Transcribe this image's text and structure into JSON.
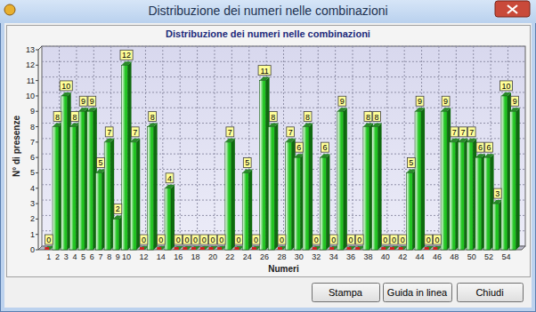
{
  "window": {
    "title": "Distribuzione dei numeri nelle combinazioni",
    "buttons": [
      "Stampa",
      "Guida in linea",
      "Chiudi"
    ]
  },
  "chart_data": {
    "type": "bar",
    "title": "Distribuzione dei numeri nelle combinazioni",
    "x_label": "Numeri",
    "y_label": "N° di presenze",
    "categories": [
      "1",
      "2",
      "3",
      "4",
      "5",
      "6",
      "7",
      "8",
      "9",
      "10",
      null,
      "12",
      null,
      "14",
      null,
      "16",
      null,
      "18",
      null,
      "20",
      null,
      "22",
      null,
      "24",
      null,
      "26",
      null,
      "28",
      null,
      "30",
      null,
      "32",
      null,
      "34",
      null,
      "36",
      null,
      "38",
      null,
      "40",
      null,
      "42",
      null,
      "44",
      null,
      "46",
      null,
      "48",
      null,
      "50",
      null,
      "52",
      null,
      "54",
      null
    ],
    "values": [
      0,
      8,
      10,
      8,
      9,
      9,
      5,
      7,
      2,
      12,
      7,
      0,
      8,
      0,
      4,
      0,
      0,
      0,
      0,
      0,
      0,
      7,
      0,
      5,
      0,
      11,
      8,
      0,
      7,
      6,
      8,
      0,
      6,
      0,
      9,
      0,
      0,
      8,
      8,
      0,
      0,
      0,
      5,
      9,
      0,
      0,
      9,
      7,
      7,
      7,
      6,
      6,
      3,
      10,
      9
    ],
    "color": "#22c422",
    "ylim": [
      0,
      13
    ],
    "yticks": [
      0,
      1,
      2,
      3,
      4,
      5,
      6,
      7,
      8,
      9,
      10,
      11,
      12,
      13
    ],
    "grid": true,
    "data_labels": true
  }
}
